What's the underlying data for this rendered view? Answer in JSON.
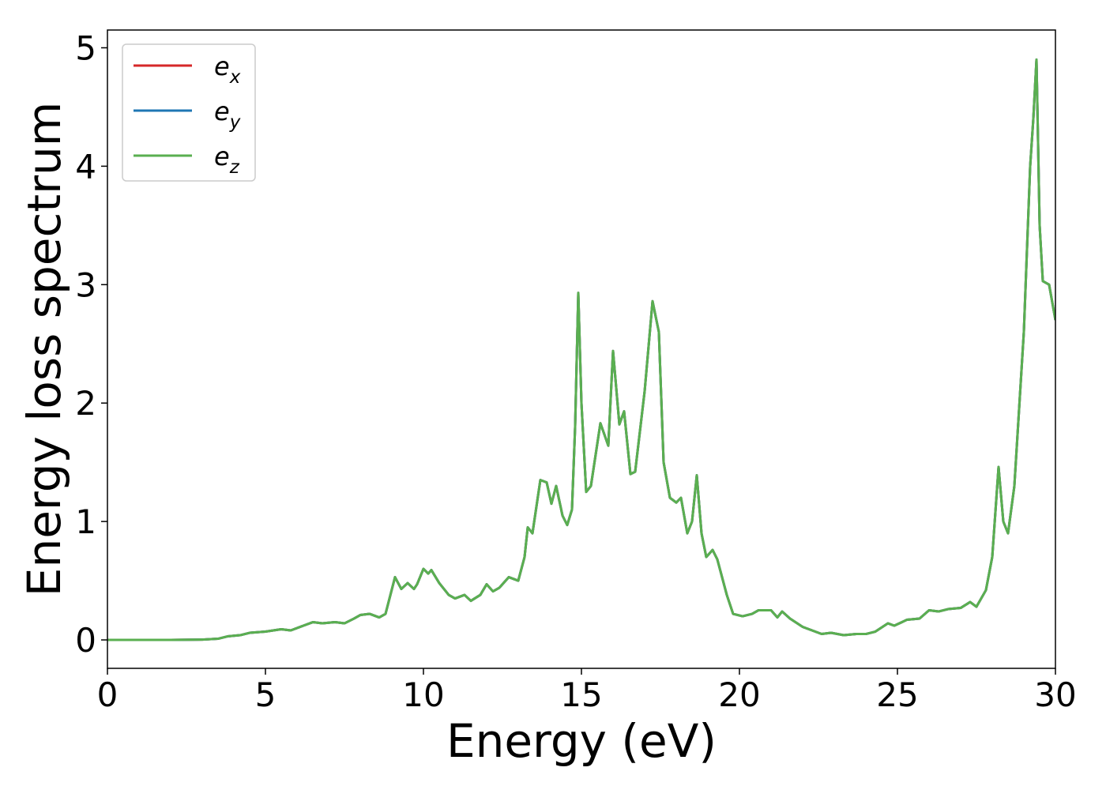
{
  "chart_data": {
    "type": "line",
    "xlabel": "Energy (eV)",
    "ylabel": "Energy loss spectrum",
    "x": [
      0,
      1,
      2,
      3,
      3.5,
      3.8,
      4.2,
      4.5,
      5,
      5.5,
      5.8,
      6.2,
      6.5,
      6.8,
      7.2,
      7.5,
      7.8,
      8,
      8.3,
      8.6,
      8.8,
      9.1,
      9.3,
      9.5,
      9.7,
      9.8,
      10,
      10.15,
      10.25,
      10.5,
      10.8,
      11,
      11.3,
      11.5,
      11.8,
      12,
      12.2,
      12.4,
      12.7,
      13,
      13.2,
      13.3,
      13.45,
      13.7,
      13.9,
      14.05,
      14.2,
      14.4,
      14.55,
      14.7,
      14.8,
      14.9,
      15,
      15.15,
      15.3,
      15.6,
      15.85,
      16,
      16.2,
      16.35,
      16.55,
      16.7,
      17,
      17.25,
      17.45,
      17.6,
      17.8,
      18,
      18.15,
      18.35,
      18.5,
      18.65,
      18.8,
      18.95,
      19.15,
      19.3,
      19.6,
      19.8,
      20.1,
      20.4,
      20.6,
      21,
      21.2,
      21.35,
      21.6,
      22,
      22.3,
      22.6,
      22.9,
      23.3,
      23.7,
      24,
      24.3,
      24.7,
      24.9,
      25.3,
      25.7,
      26,
      26.3,
      26.6,
      27,
      27.3,
      27.5,
      27.8,
      28,
      28.2,
      28.35,
      28.5,
      28.7,
      29,
      29.2,
      29.3,
      29.4,
      29.5,
      29.6,
      29.8,
      30
    ],
    "series": [
      {
        "name": "ex",
        "color": "#d62728",
        "values": [
          0,
          0,
          0,
          0.003,
          0.01,
          0.03,
          0.04,
          0.06,
          0.07,
          0.09,
          0.08,
          0.12,
          0.15,
          0.14,
          0.15,
          0.14,
          0.18,
          0.21,
          0.22,
          0.19,
          0.22,
          0.53,
          0.43,
          0.48,
          0.43,
          0.47,
          0.6,
          0.56,
          0.59,
          0.48,
          0.38,
          0.35,
          0.38,
          0.33,
          0.38,
          0.47,
          0.41,
          0.44,
          0.53,
          0.5,
          0.7,
          0.95,
          0.9,
          1.35,
          1.33,
          1.15,
          1.3,
          1.05,
          0.97,
          1.1,
          1.8,
          2.93,
          2.0,
          1.25,
          1.3,
          1.83,
          1.64,
          2.44,
          1.82,
          1.93,
          1.4,
          1.42,
          2.1,
          2.86,
          2.6,
          1.5,
          1.2,
          1.16,
          1.2,
          0.9,
          1.0,
          1.39,
          0.9,
          0.7,
          0.76,
          0.68,
          0.38,
          0.22,
          0.2,
          0.22,
          0.25,
          0.25,
          0.19,
          0.24,
          0.18,
          0.11,
          0.08,
          0.05,
          0.06,
          0.04,
          0.05,
          0.05,
          0.07,
          0.14,
          0.12,
          0.17,
          0.18,
          0.25,
          0.24,
          0.26,
          0.27,
          0.32,
          0.28,
          0.42,
          0.7,
          1.46,
          1.0,
          0.9,
          1.3,
          2.6,
          4.0,
          4.4,
          4.9,
          3.5,
          3.03,
          3.0,
          2.7
        ]
      },
      {
        "name": "ey",
        "color": "#1f77b4",
        "values": [
          0,
          0,
          0,
          0.003,
          0.01,
          0.03,
          0.04,
          0.06,
          0.07,
          0.09,
          0.08,
          0.12,
          0.15,
          0.14,
          0.15,
          0.14,
          0.18,
          0.21,
          0.22,
          0.19,
          0.22,
          0.53,
          0.43,
          0.48,
          0.43,
          0.47,
          0.6,
          0.56,
          0.59,
          0.48,
          0.38,
          0.35,
          0.38,
          0.33,
          0.38,
          0.47,
          0.41,
          0.44,
          0.53,
          0.5,
          0.7,
          0.95,
          0.9,
          1.35,
          1.33,
          1.15,
          1.3,
          1.05,
          0.97,
          1.1,
          1.8,
          2.93,
          2.0,
          1.25,
          1.3,
          1.83,
          1.64,
          2.44,
          1.82,
          1.93,
          1.4,
          1.42,
          2.1,
          2.86,
          2.6,
          1.5,
          1.2,
          1.16,
          1.2,
          0.9,
          1.0,
          1.39,
          0.9,
          0.7,
          0.76,
          0.68,
          0.38,
          0.22,
          0.2,
          0.22,
          0.25,
          0.25,
          0.19,
          0.24,
          0.18,
          0.11,
          0.08,
          0.05,
          0.06,
          0.04,
          0.05,
          0.05,
          0.07,
          0.14,
          0.12,
          0.17,
          0.18,
          0.25,
          0.24,
          0.26,
          0.27,
          0.32,
          0.28,
          0.42,
          0.7,
          1.46,
          1.0,
          0.9,
          1.3,
          2.6,
          4.0,
          4.4,
          4.9,
          3.5,
          3.03,
          3.0,
          2.7
        ]
      },
      {
        "name": "ez",
        "color": "#5aaf50",
        "values": [
          0,
          0,
          0,
          0.003,
          0.01,
          0.03,
          0.04,
          0.06,
          0.07,
          0.09,
          0.08,
          0.12,
          0.15,
          0.14,
          0.15,
          0.14,
          0.18,
          0.21,
          0.22,
          0.19,
          0.22,
          0.53,
          0.43,
          0.48,
          0.43,
          0.47,
          0.6,
          0.56,
          0.59,
          0.48,
          0.38,
          0.35,
          0.38,
          0.33,
          0.38,
          0.47,
          0.41,
          0.44,
          0.53,
          0.5,
          0.7,
          0.95,
          0.9,
          1.35,
          1.33,
          1.15,
          1.3,
          1.05,
          0.97,
          1.1,
          1.8,
          2.93,
          2.0,
          1.25,
          1.3,
          1.83,
          1.64,
          2.44,
          1.82,
          1.93,
          1.4,
          1.42,
          2.1,
          2.86,
          2.6,
          1.5,
          1.2,
          1.16,
          1.2,
          0.9,
          1.0,
          1.39,
          0.9,
          0.7,
          0.76,
          0.68,
          0.38,
          0.22,
          0.2,
          0.22,
          0.25,
          0.25,
          0.19,
          0.24,
          0.18,
          0.11,
          0.08,
          0.05,
          0.06,
          0.04,
          0.05,
          0.05,
          0.07,
          0.14,
          0.12,
          0.17,
          0.18,
          0.25,
          0.24,
          0.26,
          0.27,
          0.32,
          0.28,
          0.42,
          0.7,
          1.46,
          1.0,
          0.9,
          1.3,
          2.6,
          4.0,
          4.4,
          4.9,
          3.5,
          3.03,
          3.0,
          2.7
        ]
      }
    ],
    "xlim": [
      0,
      30
    ],
    "xticks": [
      0,
      5,
      10,
      15,
      20,
      25,
      30
    ],
    "ylim": [
      -0.24,
      5.15
    ],
    "yticks": [
      0,
      1,
      2,
      3,
      4,
      5
    ],
    "legend": "upper left",
    "grid": false
  }
}
